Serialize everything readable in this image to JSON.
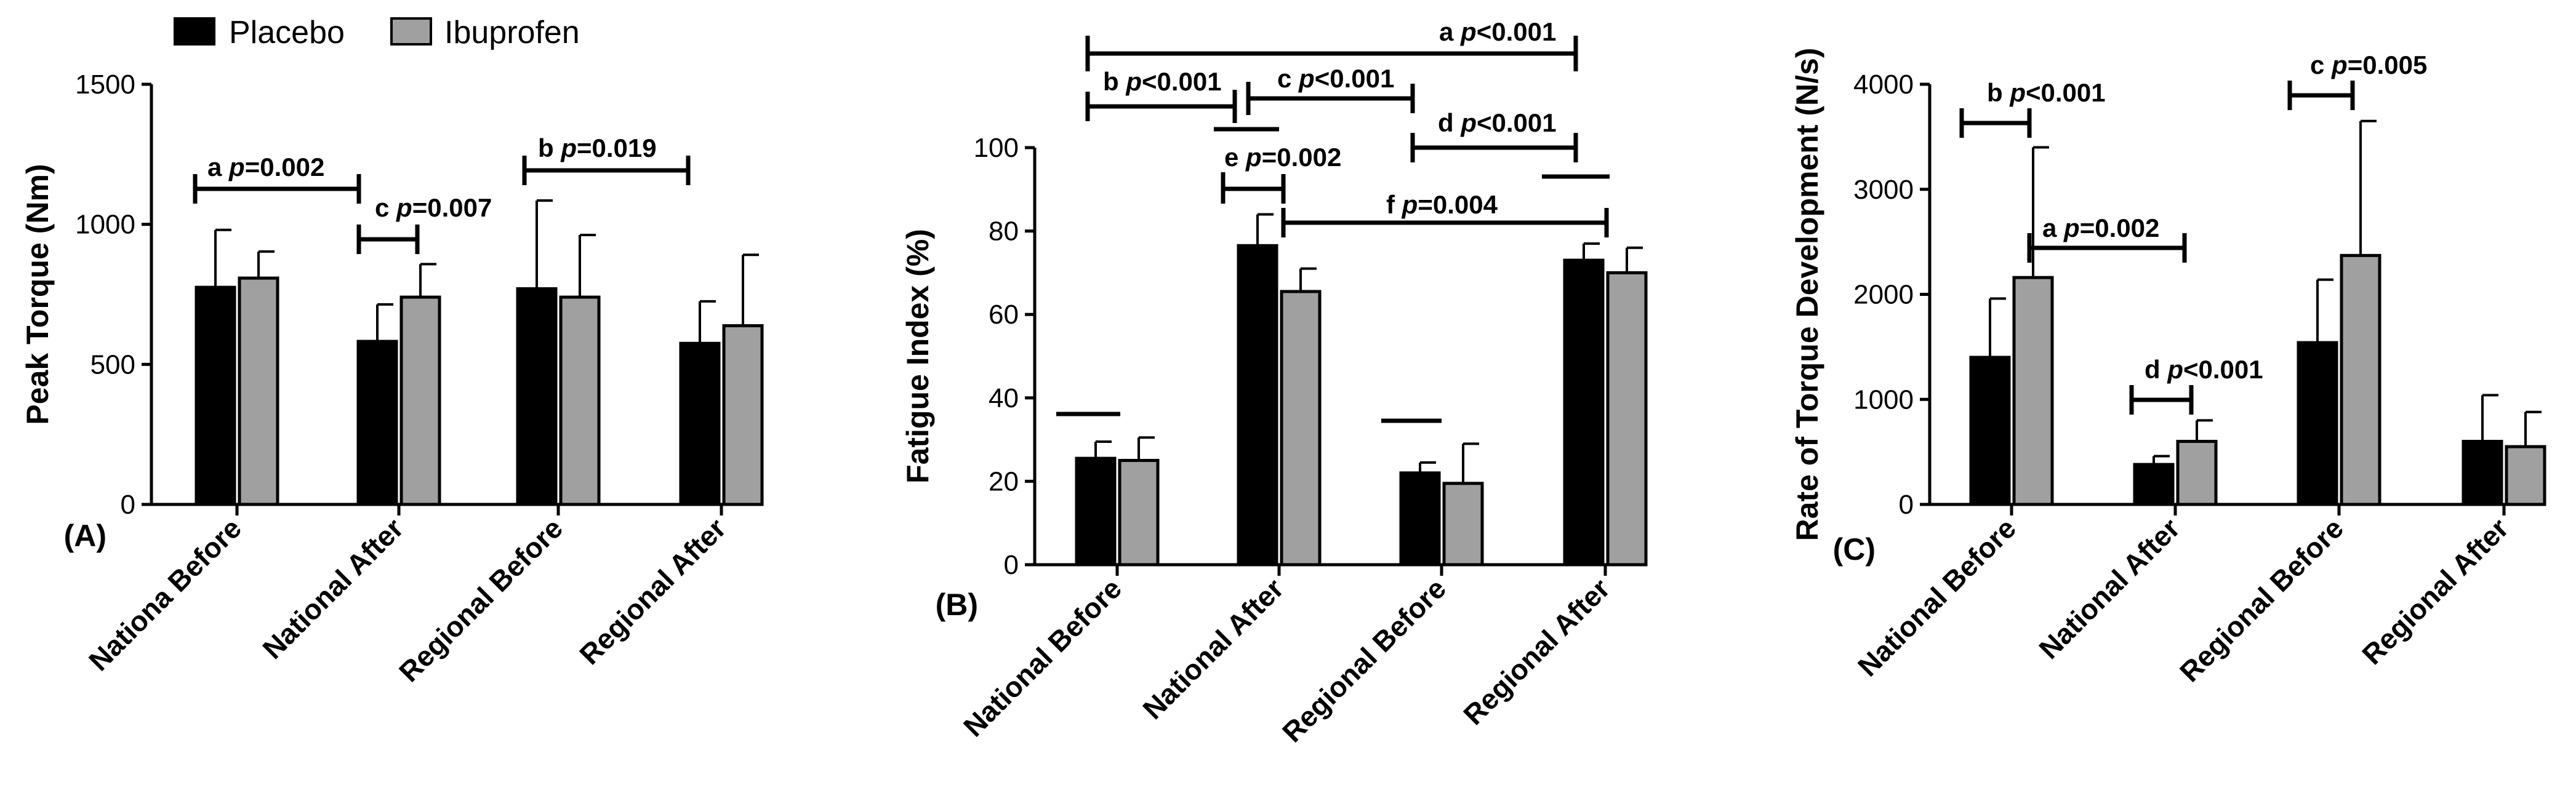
{
  "legend": [
    {
      "name": "Placebo",
      "color": "#000000"
    },
    {
      "name": "Ibuprofen",
      "color": "#a0a0a0"
    }
  ],
  "chart_data": [
    {
      "type": "bar",
      "panel": "(A)",
      "ylabel": "Peak Torque (Nm)",
      "ylim": [
        0,
        1500
      ],
      "yticks": [
        0,
        500,
        1000,
        1500
      ],
      "categories": [
        "Nationa Before",
        "National After",
        "Regional Before",
        "Regional After"
      ],
      "series": [
        {
          "name": "Placebo",
          "values": [
            775,
            582,
            770,
            575
          ],
          "errors": [
            205,
            132,
            315,
            150
          ]
        },
        {
          "name": "Ibuprofen",
          "values": [
            808,
            740,
            740,
            638
          ],
          "errors": [
            95,
            118,
            222,
            253
          ]
        }
      ],
      "annotations": [
        {
          "letter": "a",
          "p": "p",
          "rest": "=0.002"
        },
        {
          "letter": "c",
          "p": "p",
          "rest": "=0.007"
        },
        {
          "letter": "b",
          "p": "p",
          "rest": "=0.019"
        }
      ]
    },
    {
      "type": "bar",
      "panel": "(B)",
      "ylabel": "Fatigue Index (%)",
      "ylim": [
        0,
        100
      ],
      "yticks": [
        0,
        20,
        40,
        60,
        80,
        100
      ],
      "categories": [
        "National Before",
        "National After",
        "Regional Before",
        "Regional After"
      ],
      "series": [
        {
          "name": "Placebo",
          "values": [
            25.5,
            76.5,
            22,
            73
          ],
          "errors": [
            4,
            7.5,
            2.5,
            4
          ]
        },
        {
          "name": "Ibuprofen",
          "values": [
            25,
            65.5,
            19.5,
            70
          ],
          "errors": [
            5.5,
            5.5,
            9.5,
            6
          ]
        }
      ],
      "annotations": [
        {
          "letter": "a",
          "p": "p",
          "rest": "<0.001"
        },
        {
          "letter": "b",
          "p": "p",
          "rest": "<0.001"
        },
        {
          "letter": "c",
          "p": "p",
          "rest": "<0.001"
        },
        {
          "letter": "d",
          "p": "p",
          "rest": "<0.001"
        },
        {
          "letter": "e",
          "p": "p",
          "rest": "=0.002"
        },
        {
          "letter": "f",
          "p": "p",
          "rest": "=0.004"
        }
      ]
    },
    {
      "type": "bar",
      "panel": "(C)",
      "ylabel": "Rate of Torque Development (N/s)",
      "ylim": [
        0,
        4000
      ],
      "yticks": [
        0,
        1000,
        2000,
        3000,
        4000
      ],
      "categories": [
        "National Before",
        "National After",
        "Regional Before",
        "Regional After"
      ],
      "series": [
        {
          "name": "Placebo",
          "values": [
            1400,
            380,
            1540,
            600
          ],
          "errors": [
            560,
            80,
            600,
            440
          ]
        },
        {
          "name": "Ibuprofen",
          "values": [
            2160,
            600,
            2370,
            550
          ],
          "errors": [
            1240,
            200,
            1280,
            330
          ]
        }
      ],
      "annotations": [
        {
          "letter": "b",
          "p": "p",
          "rest": "<0.001"
        },
        {
          "letter": "a",
          "p": "p",
          "rest": "=0.002"
        },
        {
          "letter": "c",
          "p": "p",
          "rest": "=0.005"
        },
        {
          "letter": "d",
          "p": "p",
          "rest": "<0.001"
        }
      ]
    }
  ]
}
